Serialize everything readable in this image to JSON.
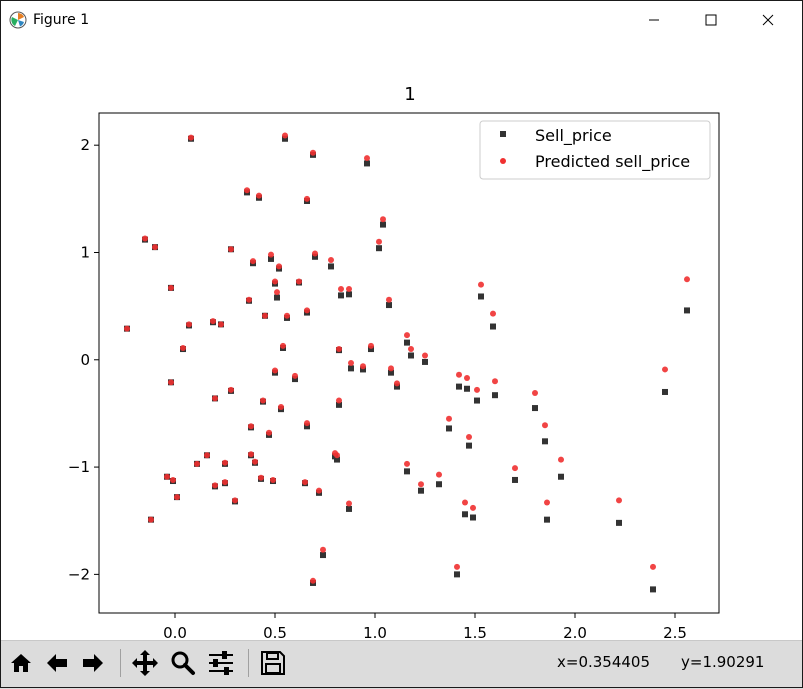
{
  "window": {
    "title": "Figure 1",
    "icons": {
      "app": "matplotlib-icon",
      "minimize": "minimize-icon",
      "maximize": "maximize-icon",
      "close": "close-icon"
    }
  },
  "toolbar": {
    "buttons": [
      "home-icon",
      "back-arrow-icon",
      "forward-arrow-icon",
      "pan-icon",
      "zoom-icon",
      "configure-subplots-icon",
      "save-icon"
    ],
    "coords_x": "x=0.354405",
    "coords_y": "y=1.90291"
  },
  "chart_data": {
    "type": "scatter",
    "title": "1",
    "xlabel": "",
    "ylabel": "",
    "xlim": [
      -0.38,
      2.72
    ],
    "ylim": [
      -2.36,
      2.3
    ],
    "xticks": [
      0.0,
      0.5,
      1.0,
      1.5,
      2.0,
      2.5
    ],
    "xtick_labels": [
      "0.0",
      "0.5",
      "1.0",
      "1.5",
      "2.0",
      "2.5"
    ],
    "yticks": [
      2,
      1,
      0,
      -1,
      -2
    ],
    "ytick_labels": [
      "2",
      "1",
      "0",
      "−1",
      "−2"
    ],
    "legend_position": "upper right",
    "series": [
      {
        "name": "Sell_price",
        "marker": "square",
        "color": "#333333",
        "points": [
          [
            -0.24,
            0.29
          ],
          [
            -0.15,
            1.12
          ],
          [
            -0.1,
            1.05
          ],
          [
            -0.12,
            -1.49
          ],
          [
            -0.04,
            -1.09
          ],
          [
            -0.02,
            0.67
          ],
          [
            -0.02,
            -0.21
          ],
          [
            -0.01,
            -1.13
          ],
          [
            0.01,
            -1.28
          ],
          [
            0.04,
            0.1
          ],
          [
            0.07,
            0.32
          ],
          [
            0.08,
            2.06
          ],
          [
            0.11,
            -0.97
          ],
          [
            0.16,
            -0.89
          ],
          [
            0.19,
            0.35
          ],
          [
            0.2,
            -1.18
          ],
          [
            0.2,
            -0.36
          ],
          [
            0.23,
            0.33
          ],
          [
            0.25,
            -1.15
          ],
          [
            0.25,
            -0.97
          ],
          [
            0.28,
            1.03
          ],
          [
            0.28,
            -0.29
          ],
          [
            0.3,
            -1.32
          ],
          [
            0.36,
            1.56
          ],
          [
            0.37,
            0.55
          ],
          [
            0.38,
            -0.89
          ],
          [
            0.38,
            -0.63
          ],
          [
            0.39,
            0.9
          ],
          [
            0.4,
            -0.96
          ],
          [
            0.42,
            1.51
          ],
          [
            0.43,
            -1.11
          ],
          [
            0.44,
            -0.39
          ],
          [
            0.45,
            0.41
          ],
          [
            0.47,
            -0.7
          ],
          [
            0.48,
            0.94
          ],
          [
            0.49,
            -1.13
          ],
          [
            0.5,
            -0.12
          ],
          [
            0.5,
            0.71
          ],
          [
            0.51,
            0.58
          ],
          [
            0.52,
            0.85
          ],
          [
            0.53,
            -0.46
          ],
          [
            0.54,
            0.11
          ],
          [
            0.55,
            2.06
          ],
          [
            0.56,
            0.39
          ],
          [
            0.6,
            -0.18
          ],
          [
            0.62,
            0.72
          ],
          [
            0.65,
            -1.15
          ],
          [
            0.66,
            -0.62
          ],
          [
            0.66,
            0.44
          ],
          [
            0.66,
            1.48
          ],
          [
            0.69,
            -2.08
          ],
          [
            0.69,
            1.91
          ],
          [
            0.7,
            0.96
          ],
          [
            0.72,
            -1.24
          ],
          [
            0.74,
            -1.82
          ],
          [
            0.78,
            0.87
          ],
          [
            0.8,
            -0.9
          ],
          [
            0.81,
            -0.93
          ],
          [
            0.82,
            0.09
          ],
          [
            0.82,
            -0.42
          ],
          [
            0.83,
            0.6
          ],
          [
            0.87,
            0.61
          ],
          [
            0.87,
            -1.39
          ],
          [
            0.88,
            -0.08
          ],
          [
            0.94,
            -0.09
          ],
          [
            0.96,
            1.83
          ],
          [
            0.98,
            0.1
          ],
          [
            1.02,
            1.04
          ],
          [
            1.04,
            1.26
          ],
          [
            1.07,
            0.51
          ],
          [
            1.08,
            -0.12
          ],
          [
            1.11,
            -0.25
          ],
          [
            1.16,
            -1.04
          ],
          [
            1.16,
            0.16
          ],
          [
            1.18,
            0.04
          ],
          [
            1.23,
            -1.22
          ],
          [
            1.25,
            -0.02
          ],
          [
            1.32,
            -1.16
          ],
          [
            1.37,
            -0.64
          ],
          [
            1.41,
            -2.0
          ],
          [
            1.42,
            -0.25
          ],
          [
            1.45,
            -1.44
          ],
          [
            1.46,
            -0.27
          ],
          [
            1.47,
            -0.8
          ],
          [
            1.49,
            -1.47
          ],
          [
            1.51,
            -0.38
          ],
          [
            1.53,
            0.59
          ],
          [
            1.59,
            0.31
          ],
          [
            1.6,
            -0.33
          ],
          [
            1.7,
            -1.12
          ],
          [
            1.8,
            -0.45
          ],
          [
            1.85,
            -0.76
          ],
          [
            1.86,
            -1.49
          ],
          [
            1.93,
            -1.09
          ],
          [
            2.22,
            -1.52
          ],
          [
            2.39,
            -2.14
          ],
          [
            2.45,
            -0.3
          ],
          [
            2.56,
            0.46
          ]
        ]
      },
      {
        "name": "Predicted sell_price",
        "marker": "circle",
        "color": "#f03030",
        "points": [
          [
            -0.24,
            0.29
          ],
          [
            -0.15,
            1.13
          ],
          [
            -0.1,
            1.05
          ],
          [
            -0.12,
            -1.49
          ],
          [
            -0.04,
            -1.09
          ],
          [
            -0.02,
            0.67
          ],
          [
            -0.02,
            -0.21
          ],
          [
            -0.01,
            -1.12
          ],
          [
            0.01,
            -1.28
          ],
          [
            0.04,
            0.11
          ],
          [
            0.07,
            0.33
          ],
          [
            0.08,
            2.07
          ],
          [
            0.11,
            -0.97
          ],
          [
            0.16,
            -0.89
          ],
          [
            0.19,
            0.36
          ],
          [
            0.2,
            -1.17
          ],
          [
            0.2,
            -0.36
          ],
          [
            0.23,
            0.33
          ],
          [
            0.25,
            -1.14
          ],
          [
            0.25,
            -0.96
          ],
          [
            0.28,
            1.03
          ],
          [
            0.28,
            -0.28
          ],
          [
            0.3,
            -1.31
          ],
          [
            0.36,
            1.58
          ],
          [
            0.37,
            0.56
          ],
          [
            0.38,
            -0.88
          ],
          [
            0.38,
            -0.62
          ],
          [
            0.39,
            0.92
          ],
          [
            0.4,
            -0.95
          ],
          [
            0.42,
            1.53
          ],
          [
            0.43,
            -1.1
          ],
          [
            0.44,
            -0.38
          ],
          [
            0.45,
            0.41
          ],
          [
            0.47,
            -0.68
          ],
          [
            0.48,
            0.98
          ],
          [
            0.49,
            -1.12
          ],
          [
            0.5,
            -0.1
          ],
          [
            0.5,
            0.73
          ],
          [
            0.51,
            0.63
          ],
          [
            0.52,
            0.87
          ],
          [
            0.53,
            -0.44
          ],
          [
            0.54,
            0.13
          ],
          [
            0.55,
            2.09
          ],
          [
            0.56,
            0.41
          ],
          [
            0.6,
            -0.15
          ],
          [
            0.62,
            0.73
          ],
          [
            0.65,
            -1.14
          ],
          [
            0.66,
            -0.59
          ],
          [
            0.66,
            0.46
          ],
          [
            0.66,
            1.5
          ],
          [
            0.69,
            -2.06
          ],
          [
            0.69,
            1.93
          ],
          [
            0.7,
            0.99
          ],
          [
            0.72,
            -1.22
          ],
          [
            0.74,
            -1.77
          ],
          [
            0.78,
            0.93
          ],
          [
            0.8,
            -0.87
          ],
          [
            0.81,
            -0.89
          ],
          [
            0.82,
            0.1
          ],
          [
            0.82,
            -0.38
          ],
          [
            0.83,
            0.66
          ],
          [
            0.87,
            0.66
          ],
          [
            0.87,
            -1.34
          ],
          [
            0.88,
            -0.03
          ],
          [
            0.94,
            -0.06
          ],
          [
            0.96,
            1.88
          ],
          [
            0.98,
            0.13
          ],
          [
            1.02,
            1.1
          ],
          [
            1.04,
            1.31
          ],
          [
            1.07,
            0.56
          ],
          [
            1.08,
            -0.08
          ],
          [
            1.11,
            -0.22
          ],
          [
            1.16,
            -0.97
          ],
          [
            1.16,
            0.23
          ],
          [
            1.18,
            0.1
          ],
          [
            1.23,
            -1.16
          ],
          [
            1.25,
            0.04
          ],
          [
            1.32,
            -1.07
          ],
          [
            1.37,
            -0.55
          ],
          [
            1.41,
            -1.93
          ],
          [
            1.42,
            -0.14
          ],
          [
            1.45,
            -1.33
          ],
          [
            1.46,
            -0.17
          ],
          [
            1.47,
            -0.72
          ],
          [
            1.49,
            -1.38
          ],
          [
            1.51,
            -0.28
          ],
          [
            1.53,
            0.7
          ],
          [
            1.59,
            0.43
          ],
          [
            1.6,
            -0.2
          ],
          [
            1.7,
            -1.01
          ],
          [
            1.8,
            -0.31
          ],
          [
            1.85,
            -0.61
          ],
          [
            1.86,
            -1.33
          ],
          [
            1.93,
            -0.93
          ],
          [
            2.22,
            -1.31
          ],
          [
            2.39,
            -1.93
          ],
          [
            2.45,
            -0.09
          ],
          [
            2.56,
            0.75
          ]
        ]
      }
    ]
  }
}
